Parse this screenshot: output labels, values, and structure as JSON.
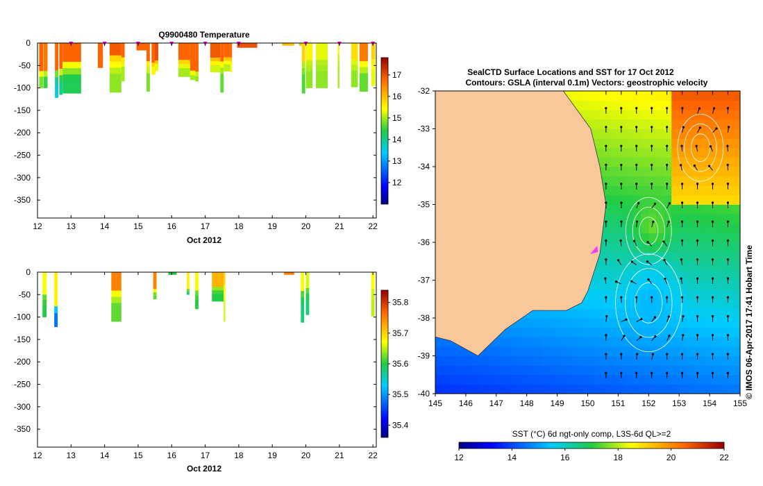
{
  "chart_data": [
    {
      "type": "heatmap",
      "title": "Q9900480  Temperature",
      "xlabel": "Oct 2012",
      "x_ticks": [
        "12",
        "13",
        "14",
        "15",
        "16",
        "17",
        "18",
        "19",
        "20",
        "21",
        "22"
      ],
      "xlim": [
        12,
        22.1
      ],
      "ylim": [
        -390,
        0
      ],
      "y_ticks": [
        0,
        -50,
        -100,
        -150,
        -200,
        -250,
        -300,
        -350
      ],
      "colorbar": {
        "min": 11,
        "max": 17.8,
        "ticks": [
          12,
          13,
          14,
          15,
          16,
          17
        ]
      },
      "profiles": [
        {
          "t": 12.05,
          "w": 0.12,
          "depth": 60,
          "deep": 100,
          "cs": 16.8,
          "cd": 14.8
        },
        {
          "t": 12.18,
          "w": 0.12,
          "depth": 60,
          "deep": 100,
          "cs": 16.6,
          "cd": 14.5
        },
        {
          "t": 12.52,
          "w": 0.1,
          "depth": 60,
          "deep": 122,
          "cs": 16.8,
          "cd": 13.6
        },
        {
          "t": 12.65,
          "w": 0.1,
          "depth": 60,
          "deep": 115,
          "cs": 16.8,
          "cd": 14.0
        },
        {
          "t": 12.75,
          "w": 0.55,
          "depth": 45,
          "deep": 112,
          "cs": 16.8,
          "cd": 14.3
        },
        {
          "t": 13.8,
          "w": 0.15,
          "depth": 55,
          "deep": 55,
          "cs": 16.8,
          "cd": 15.8
        },
        {
          "t": 14.15,
          "w": 0.35,
          "depth": 30,
          "deep": 110,
          "cs": 16.9,
          "cd": 14.9
        },
        {
          "t": 14.5,
          "w": 0.1,
          "depth": 30,
          "deep": 85,
          "cs": 16.8,
          "cd": 15.0
        },
        {
          "t": 14.95,
          "w": 0.3,
          "depth": 16,
          "deep": 16,
          "cs": 16.8,
          "cd": 16.8
        },
        {
          "t": 15.25,
          "w": 0.1,
          "depth": 40,
          "deep": 108,
          "cs": 16.8,
          "cd": 14.8
        },
        {
          "t": 15.4,
          "w": 0.12,
          "depth": 40,
          "deep": 70,
          "cs": 16.8,
          "cd": 15.5
        },
        {
          "t": 15.5,
          "w": 0.1,
          "depth": 40,
          "deep": 62,
          "cs": 17.0,
          "cd": 15.3
        },
        {
          "t": 16.2,
          "w": 0.35,
          "depth": 40,
          "deep": 75,
          "cs": 16.8,
          "cd": 15.0
        },
        {
          "t": 16.55,
          "w": 0.15,
          "depth": 60,
          "deep": 82,
          "cs": 16.8,
          "cd": 15.0
        },
        {
          "t": 16.7,
          "w": 0.1,
          "depth": 60,
          "deep": 85,
          "cs": 16.8,
          "cd": 14.9
        },
        {
          "t": 17.15,
          "w": 0.3,
          "depth": 35,
          "deep": 65,
          "cs": 16.9,
          "cd": 15.2
        },
        {
          "t": 17.45,
          "w": 0.1,
          "depth": 35,
          "deep": 110,
          "cs": 16.8,
          "cd": 14.7
        },
        {
          "t": 17.55,
          "w": 0.2,
          "depth": 35,
          "deep": 63,
          "cs": 16.8,
          "cd": 15.1
        },
        {
          "t": 17.75,
          "w": 0.05,
          "depth": 30,
          "deep": 65,
          "cs": 16.8,
          "cd": 15.5
        },
        {
          "t": 17.95,
          "w": 0.6,
          "depth": 10,
          "deep": 10,
          "cs": 17.0,
          "cd": 17.0
        },
        {
          "t": 19.3,
          "w": 0.35,
          "depth": 5,
          "deep": 5,
          "cs": 16.0,
          "cd": 16.0
        },
        {
          "t": 19.8,
          "w": 0.1,
          "depth": 5,
          "deep": 5,
          "cs": 16.0,
          "cd": 16.0
        },
        {
          "t": 19.88,
          "w": 0.1,
          "depth": 40,
          "deep": 112,
          "cs": 15.8,
          "cd": 14.6
        },
        {
          "t": 20.0,
          "w": 0.2,
          "depth": 40,
          "deep": 100,
          "cs": 15.5,
          "cd": 14.9
        },
        {
          "t": 20.3,
          "w": 0.35,
          "depth": 40,
          "deep": 100,
          "cs": 15.3,
          "cd": 14.9
        },
        {
          "t": 20.95,
          "w": 0.05,
          "depth": 20,
          "deep": 100,
          "cs": 15.5,
          "cd": 15.0
        },
        {
          "t": 21.35,
          "w": 0.2,
          "depth": 40,
          "deep": 98,
          "cs": 15.7,
          "cd": 14.9
        },
        {
          "t": 21.6,
          "w": 0.25,
          "depth": 40,
          "deep": 108,
          "cs": 16.6,
          "cd": 14.7
        },
        {
          "t": 21.95,
          "w": 0.12,
          "depth": 40,
          "deep": 95,
          "cs": 15.8,
          "cd": 15.3
        }
      ],
      "station_markers": [
        13.0,
        14.0,
        15.0,
        16.0,
        17.0,
        18.0,
        20.0,
        21.0,
        22.0
      ]
    },
    {
      "type": "heatmap",
      "title": "",
      "xlabel": "Oct 2012",
      "x_ticks": [
        "12",
        "13",
        "14",
        "15",
        "16",
        "17",
        "18",
        "19",
        "20",
        "21",
        "22"
      ],
      "xlim": [
        12,
        22.1
      ],
      "ylim": [
        -390,
        0
      ],
      "y_ticks": [
        0,
        -50,
        -100,
        -150,
        -200,
        -250,
        -300,
        -350
      ],
      "colorbar": {
        "min": 35.36,
        "max": 35.84,
        "ticks": [
          35.4,
          35.5,
          35.6,
          35.7,
          35.8
        ]
      },
      "profiles": [
        {
          "t": 12.15,
          "w": 0.12,
          "depth": 45,
          "deep": 100,
          "cs": 35.67,
          "cd": 35.6
        },
        {
          "t": 12.5,
          "w": 0.1,
          "depth": 70,
          "deep": 122,
          "cs": 35.68,
          "cd": 35.48
        },
        {
          "t": 14.2,
          "w": 0.3,
          "depth": 40,
          "deep": 110,
          "cs": 35.75,
          "cd": 35.62
        },
        {
          "t": 15.45,
          "w": 0.1,
          "depth": 40,
          "deep": 60,
          "cs": 35.75,
          "cd": 35.62
        },
        {
          "t": 15.9,
          "w": 0.25,
          "depth": 5,
          "deep": 5,
          "cs": 35.6,
          "cd": 35.6
        },
        {
          "t": 16.45,
          "w": 0.08,
          "depth": 40,
          "deep": 50,
          "cs": 35.68,
          "cd": 35.58
        },
        {
          "t": 16.7,
          "w": 0.1,
          "depth": 40,
          "deep": 82,
          "cs": 35.67,
          "cd": 35.6
        },
        {
          "t": 17.2,
          "w": 0.35,
          "depth": 30,
          "deep": 65,
          "cs": 35.72,
          "cd": 35.6
        },
        {
          "t": 17.55,
          "w": 0.05,
          "depth": 30,
          "deep": 110,
          "cs": 35.7,
          "cd": 35.66
        },
        {
          "t": 19.35,
          "w": 0.3,
          "depth": 5,
          "deep": 5,
          "cs": 35.75,
          "cd": 35.75
        },
        {
          "t": 19.85,
          "w": 0.1,
          "depth": 40,
          "deep": 112,
          "cs": 35.67,
          "cd": 35.58
        },
        {
          "t": 20.0,
          "w": 0.1,
          "depth": 40,
          "deep": 95,
          "cs": 35.66,
          "cd": 35.58
        },
        {
          "t": 21.95,
          "w": 0.1,
          "depth": 40,
          "deep": 98,
          "cs": 35.67,
          "cd": 35.65
        }
      ]
    },
    {
      "type": "heatmap",
      "title": "SealCTD Surface Locations and SST for 17 Oct 2012",
      "subtitle": "Contours: GSLA (interval 0.1m) Vectors: geostrophic velocity",
      "x_ticks": [
        "145",
        "146",
        "147",
        "148",
        "149",
        "150",
        "151",
        "152",
        "153",
        "154",
        "155"
      ],
      "y_ticks": [
        "-32",
        "-33",
        "-34",
        "-35",
        "-36",
        "-37",
        "-38",
        "-39",
        "-40"
      ],
      "xlim": [
        145,
        155
      ],
      "ylim": [
        -40,
        -32
      ],
      "side_label": "© IMOS 06-Apr-2017 17:41 Hobart Time",
      "colorbar": {
        "label": "SST (°C) 6d ngt-only comp, L3S-6d QL>=2",
        "min": 12,
        "max": 22,
        "ticks": [
          "12",
          "14",
          "16",
          "18",
          "20",
          "22"
        ]
      },
      "coast": [
        [
          149.2,
          -32
        ],
        [
          150.1,
          -33
        ],
        [
          150.4,
          -34
        ],
        [
          150.6,
          -35
        ],
        [
          150.4,
          -36.3
        ],
        [
          150.0,
          -37.3
        ],
        [
          149.8,
          -37.6
        ],
        [
          149.3,
          -37.8
        ],
        [
          148.2,
          -37.8
        ],
        [
          147.3,
          -38.3
        ],
        [
          146.4,
          -39.0
        ],
        [
          145.5,
          -38.6
        ],
        [
          145,
          -38.5
        ]
      ],
      "eddies": [
        {
          "x": 152.0,
          "y": -35.7,
          "r": 0.55,
          "sst": 17.6
        },
        {
          "x": 152.0,
          "y": -37.6,
          "r": 0.8,
          "sst": 15.2
        },
        {
          "x": 153.7,
          "y": -33.5,
          "r": 0.55,
          "sst": 20.2
        }
      ],
      "seal_positions": [
        {
          "x": 150.2,
          "y": -36.2
        }
      ]
    }
  ]
}
